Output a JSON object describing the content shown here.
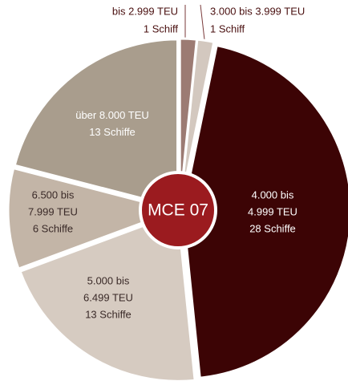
{
  "chart_data": {
    "type": "pie",
    "center_label": "MCE 07",
    "categories": [
      [
        "bis 2.999 TEU"
      ],
      [
        "3.000 bis 3.999 TEU"
      ],
      [
        "4.000 bis",
        "4.999 TEU"
      ],
      [
        "5.000 bis",
        "6.499 TEU"
      ],
      [
        "6.500 bis",
        "7.999 TEU"
      ],
      [
        "über 8.000 TEU"
      ]
    ],
    "values": [
      1,
      1,
      28,
      13,
      6,
      13
    ],
    "value_labels": [
      "1 Schiff",
      "1 Schiff",
      "28 Schiffe",
      "13 Schiffe",
      "6 Schiffe",
      "13 Schiffe"
    ],
    "colors": [
      "#9c7b73",
      "#d3c8bf",
      "#3c0405",
      "#d6cbc1",
      "#c3b5a7",
      "#a99d8d"
    ]
  }
}
